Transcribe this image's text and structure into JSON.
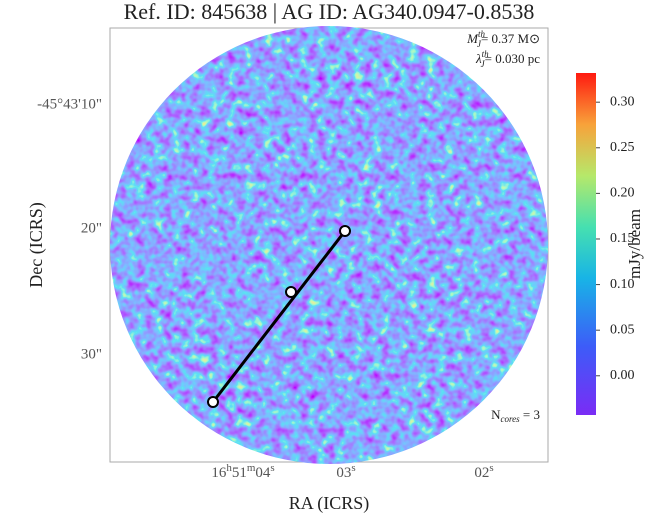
{
  "chart_data": {
    "type": "image",
    "title": "Ref. ID: 845638 | AG ID: AG340.0947-0.8538",
    "xlabel": "RA (ICRS)",
    "ylabel": "Dec (ICRS)",
    "xtick_labels": [
      [
        "16",
        "h",
        "51",
        "m",
        "04",
        "s"
      ],
      [
        "03",
        "s"
      ],
      [
        "02",
        "s"
      ]
    ],
    "ytick_labels": [
      "-45°43'10\"",
      "20\"",
      "30\""
    ],
    "annotations": [
      {
        "symbol": "M",
        "sub": "J",
        "sup": "th",
        "text": "= 0.37 M⊙"
      },
      {
        "symbol": "λ",
        "sub": "J",
        "sup": "th",
        "text": "= 0.030 pc"
      },
      {
        "symbol": "N",
        "sub": "cores",
        "text": " = 3"
      }
    ],
    "colorbar": {
      "label": "mJy/beam",
      "clim": [
        -0.043,
        0.332
      ],
      "ticks": [
        {
          "value": 0,
          "label": "0.00"
        },
        {
          "value": 0.05,
          "label": "0.05"
        },
        {
          "value": 0.1,
          "label": "0.10"
        },
        {
          "value": 0.15,
          "label": "0.15"
        },
        {
          "value": 0.2,
          "label": "0.20"
        },
        {
          "value": 0.25,
          "label": "0.25"
        },
        {
          "value": 0.3,
          "label": "0.30"
        }
      ]
    }
  }
}
